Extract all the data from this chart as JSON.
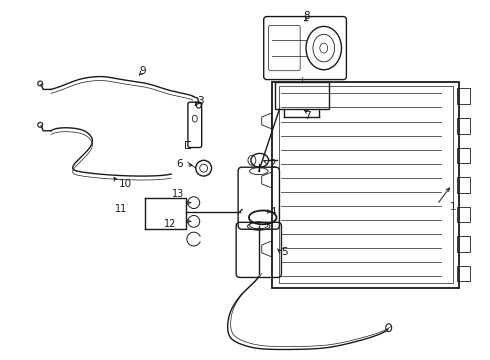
{
  "bg_color": "#ffffff",
  "line_color": "#1a1a1a",
  "line_width": 1.0,
  "label_fontsize": 7.5,
  "fig_w": 4.9,
  "fig_h": 3.6,
  "dpi": 100
}
